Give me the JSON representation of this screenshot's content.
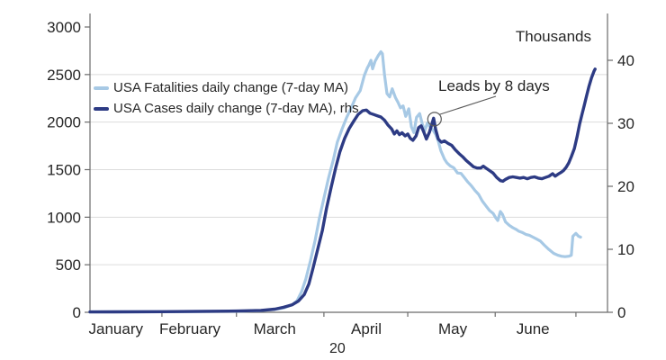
{
  "chart_data": {
    "type": "line",
    "title": "",
    "x_axis": {
      "months": [
        "January",
        "February",
        "March",
        "April",
        "May",
        "June"
      ],
      "month_center_pcts": [
        5.0,
        19.3,
        35.7,
        53.4,
        70.1,
        85.6
      ],
      "month_tick_pcts": [
        13.9,
        28.3,
        45.2,
        61.4,
        78.3,
        93.9
      ],
      "year_label": "20",
      "year_label_pct": 48.1
    },
    "left_axis": {
      "min": 0,
      "max": 3000,
      "ticks": [
        0,
        500,
        1000,
        1500,
        2000,
        2500,
        3000
      ],
      "gridlines": [
        500,
        1000,
        1500,
        2000,
        2500
      ]
    },
    "right_axis": {
      "title": "Thousands",
      "min": 0,
      "max": 43,
      "ticks": [
        0,
        10,
        20,
        30,
        40
      ]
    },
    "annotation": {
      "text": "Leads by 8 days",
      "target_series": "USA Cases daily change (7-day MA), rhs",
      "target_pct": 66.4,
      "target_value": 30.8
    },
    "colors": {
      "fatalities_line": "#a7c9e5",
      "cases_line": "#2d3b84",
      "axis": "#6b6b6b",
      "gridline": "#dcdcdc",
      "text": "#262626",
      "annotation_stroke": "#595959"
    },
    "series": [
      {
        "name": "USA Fatalities daily change (7-day MA)",
        "axis": "left",
        "color": "#a7c9e5",
        "points": [
          [
            0,
            5
          ],
          [
            7,
            5
          ],
          [
            14,
            6
          ],
          [
            21,
            8
          ],
          [
            28.3,
            10
          ],
          [
            33,
            18
          ],
          [
            35.7,
            30
          ],
          [
            37.4,
            45
          ],
          [
            39.1,
            80
          ],
          [
            40,
            120
          ],
          [
            40.9,
            220
          ],
          [
            41.7,
            350
          ],
          [
            42.6,
            540
          ],
          [
            43.5,
            755
          ],
          [
            44.3,
            980
          ],
          [
            45.2,
            1200
          ],
          [
            46.1,
            1415
          ],
          [
            47,
            1600
          ],
          [
            47.8,
            1790
          ],
          [
            48.7,
            1925
          ],
          [
            49.6,
            2050
          ],
          [
            50.4,
            2140
          ],
          [
            51.3,
            2255
          ],
          [
            52.2,
            2330
          ],
          [
            53,
            2490
          ],
          [
            53.6,
            2570
          ],
          [
            53.9,
            2600
          ],
          [
            54.3,
            2650
          ],
          [
            54.6,
            2560
          ],
          [
            55.1,
            2640
          ],
          [
            55.7,
            2700
          ],
          [
            56.2,
            2740
          ],
          [
            56.5,
            2720
          ],
          [
            56.9,
            2500
          ],
          [
            57.4,
            2300
          ],
          [
            57.9,
            2265
          ],
          [
            58.4,
            2350
          ],
          [
            59,
            2260
          ],
          [
            59.5,
            2210
          ],
          [
            60,
            2150
          ],
          [
            60.5,
            2170
          ],
          [
            61,
            2060
          ],
          [
            61.6,
            2140
          ],
          [
            62.1,
            1950
          ],
          [
            62.6,
            1890
          ],
          [
            63.1,
            2050
          ],
          [
            63.7,
            2090
          ],
          [
            64.2,
            1980
          ],
          [
            64.7,
            1910
          ],
          [
            65.2,
            1990
          ],
          [
            65.7,
            1950
          ],
          [
            66.3,
            1915
          ],
          [
            66.8,
            1870
          ],
          [
            67.3,
            1800
          ],
          [
            67.8,
            1700
          ],
          [
            68.5,
            1610
          ],
          [
            69,
            1570
          ],
          [
            69.6,
            1540
          ],
          [
            70.3,
            1520
          ],
          [
            71,
            1465
          ],
          [
            71.7,
            1460
          ],
          [
            72.3,
            1420
          ],
          [
            73,
            1370
          ],
          [
            73.7,
            1330
          ],
          [
            74.4,
            1280
          ],
          [
            75.1,
            1240
          ],
          [
            75.8,
            1170
          ],
          [
            76.5,
            1120
          ],
          [
            77.2,
            1070
          ],
          [
            77.9,
            1040
          ],
          [
            78.4,
            995
          ],
          [
            78.8,
            965
          ],
          [
            79.3,
            1060
          ],
          [
            79.7,
            1030
          ],
          [
            80.3,
            950
          ],
          [
            81,
            915
          ],
          [
            81.7,
            890
          ],
          [
            82.4,
            870
          ],
          [
            82.8,
            855
          ],
          [
            83.5,
            840
          ],
          [
            84.2,
            820
          ],
          [
            84.9,
            810
          ],
          [
            85.6,
            790
          ],
          [
            86.3,
            770
          ],
          [
            87,
            750
          ],
          [
            87.8,
            705
          ],
          [
            88.7,
            660
          ],
          [
            89.6,
            620
          ],
          [
            90.4,
            600
          ],
          [
            91.1,
            590
          ],
          [
            91.8,
            585
          ],
          [
            92.5,
            590
          ],
          [
            93,
            600
          ],
          [
            93.3,
            800
          ],
          [
            93.9,
            830
          ],
          [
            94.4,
            800
          ],
          [
            94.8,
            790
          ]
        ]
      },
      {
        "name": "USA Cases daily change (7-day MA), rhs",
        "axis": "right",
        "color": "#2d3b84",
        "points": [
          [
            0,
            0.05
          ],
          [
            14,
            0.1
          ],
          [
            28.3,
            0.2
          ],
          [
            33,
            0.3
          ],
          [
            35.7,
            0.5
          ],
          [
            37.4,
            0.8
          ],
          [
            39.1,
            1.2
          ],
          [
            40.3,
            1.8
          ],
          [
            41.4,
            2.8
          ],
          [
            42.3,
            4.5
          ],
          [
            43.1,
            7
          ],
          [
            44,
            10
          ],
          [
            44.9,
            13
          ],
          [
            45.7,
            16.5
          ],
          [
            46.6,
            19.8
          ],
          [
            47.5,
            23
          ],
          [
            48.3,
            25.5
          ],
          [
            49.2,
            27.6
          ],
          [
            50.1,
            29.2
          ],
          [
            51,
            30.4
          ],
          [
            51.8,
            31.4
          ],
          [
            52.7,
            32
          ],
          [
            53.4,
            32.1
          ],
          [
            54.1,
            31.6
          ],
          [
            54.8,
            31.4
          ],
          [
            55.5,
            31.2
          ],
          [
            56.2,
            31
          ],
          [
            56.9,
            30.5
          ],
          [
            57.6,
            29.7
          ],
          [
            58.3,
            29.1
          ],
          [
            58.8,
            28.3
          ],
          [
            59.3,
            28.8
          ],
          [
            59.8,
            28.2
          ],
          [
            60.3,
            28.5
          ],
          [
            60.9,
            28
          ],
          [
            61.4,
            28.3
          ],
          [
            61.9,
            27.6
          ],
          [
            62.4,
            27.3
          ],
          [
            63,
            28
          ],
          [
            63.5,
            29.3
          ],
          [
            64,
            29.6
          ],
          [
            64.5,
            28.6
          ],
          [
            65,
            27.5
          ],
          [
            65.6,
            28.6
          ],
          [
            66.1,
            30
          ],
          [
            66.4,
            30.8
          ],
          [
            66.8,
            29
          ],
          [
            67.3,
            27.5
          ],
          [
            67.9,
            27
          ],
          [
            68.5,
            27.2
          ],
          [
            69.2,
            26.8
          ],
          [
            69.9,
            26.5
          ],
          [
            70.6,
            25.8
          ],
          [
            71.3,
            25.2
          ],
          [
            72,
            24.7
          ],
          [
            72.7,
            24.1
          ],
          [
            73.4,
            23.6
          ],
          [
            74.1,
            23.1
          ],
          [
            74.8,
            22.9
          ],
          [
            75.5,
            22.9
          ],
          [
            76,
            23.2
          ],
          [
            76.5,
            22.9
          ],
          [
            77.2,
            22.5
          ],
          [
            77.9,
            22.1
          ],
          [
            78.6,
            21.4
          ],
          [
            79.3,
            20.9
          ],
          [
            79.8,
            20.8
          ],
          [
            80.3,
            21.1
          ],
          [
            81,
            21.4
          ],
          [
            81.7,
            21.5
          ],
          [
            82.4,
            21.4
          ],
          [
            83.1,
            21.3
          ],
          [
            83.8,
            21.4
          ],
          [
            84.5,
            21.2
          ],
          [
            85.2,
            21.4
          ],
          [
            85.9,
            21.5
          ],
          [
            86.6,
            21.3
          ],
          [
            87.3,
            21.2
          ],
          [
            88,
            21.4
          ],
          [
            88.7,
            21.6
          ],
          [
            89.4,
            22
          ],
          [
            89.9,
            21.6
          ],
          [
            90.4,
            21.9
          ],
          [
            91,
            22.2
          ],
          [
            91.5,
            22.5
          ],
          [
            92,
            23
          ],
          [
            92.5,
            23.7
          ],
          [
            93,
            24.7
          ],
          [
            93.6,
            26
          ],
          [
            94.1,
            27.8
          ],
          [
            94.6,
            29.8
          ],
          [
            95.1,
            31.5
          ],
          [
            95.5,
            32.8
          ],
          [
            96,
            34.5
          ],
          [
            96.4,
            35.8
          ],
          [
            96.9,
            37.2
          ],
          [
            97.4,
            38.3
          ],
          [
            97.6,
            38.6
          ]
        ]
      }
    ]
  }
}
